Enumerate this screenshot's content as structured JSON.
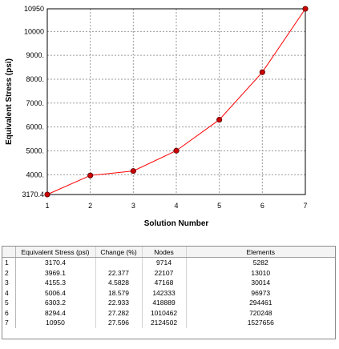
{
  "chart_data": {
    "type": "line",
    "xlabel": "Solution Number",
    "ylabel": "Equivalent Stress (psi)",
    "x": [
      1,
      2,
      3,
      4,
      5,
      6,
      7
    ],
    "xticks": [
      "1",
      "2",
      "3",
      "4",
      "5",
      "6",
      "7"
    ],
    "yticks": [
      "3170.4",
      "4000.",
      "5000.",
      "6000.",
      "7000.",
      "8000.",
      "9000.",
      "10000",
      "10950"
    ],
    "ytick_values": [
      3170.4,
      4000,
      5000,
      6000,
      7000,
      8000,
      9000,
      10000,
      10950
    ],
    "ylim": [
      3170.4,
      10950
    ],
    "xlim": [
      1,
      7
    ],
    "grid": true,
    "series": [
      {
        "values": [
          3170.4,
          3969.1,
          4155.3,
          5006.4,
          6303.2,
          8294.4,
          10950
        ]
      }
    ],
    "line_color": "#ff0000",
    "marker_color": "#cc0000"
  },
  "table": {
    "headers": [
      "",
      "Equivalent Stress (psi)",
      "Change (%)",
      "Nodes",
      "Elements"
    ],
    "rows": [
      [
        "1",
        "3170.4",
        "",
        "9714",
        "5282"
      ],
      [
        "2",
        "3969.1",
        "22.377",
        "22107",
        "13010"
      ],
      [
        "3",
        "4155.3",
        "4.5828",
        "47168",
        "30014"
      ],
      [
        "4",
        "5006.4",
        "18.579",
        "142333",
        "96973"
      ],
      [
        "5",
        "6303.2",
        "22.933",
        "418889",
        "294461"
      ],
      [
        "6",
        "8294.4",
        "27.282",
        "1010462",
        "720248"
      ],
      [
        "7",
        "10950",
        "27.596",
        "2124502",
        "1527656"
      ]
    ]
  }
}
